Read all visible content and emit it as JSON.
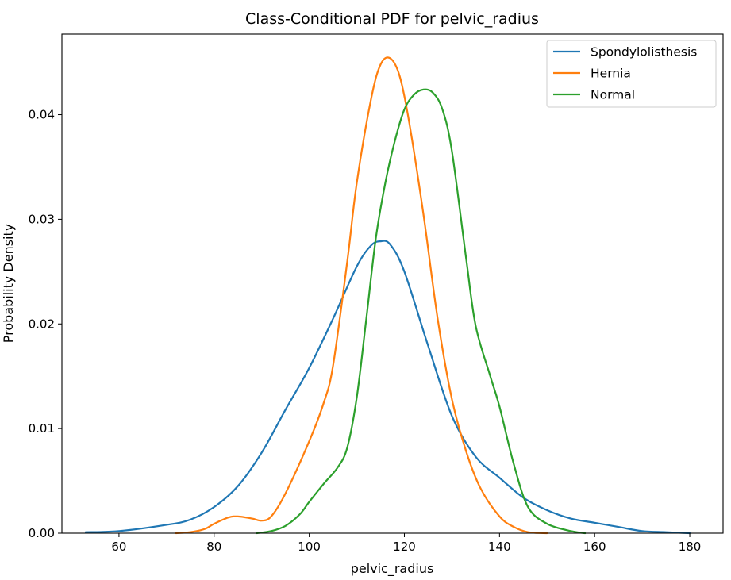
{
  "chart_data": {
    "type": "line",
    "title": "Class-Conditional PDF for pelvic_radius",
    "xlabel": "pelvic_radius",
    "ylabel": "Probability Density",
    "xlim": [
      48,
      187
    ],
    "ylim": [
      0,
      0.0477
    ],
    "xticks": [
      60,
      80,
      100,
      120,
      140,
      160,
      180
    ],
    "yticks": [
      0.0,
      0.01,
      0.02,
      0.03,
      0.04
    ],
    "ytick_labels": [
      "0.00",
      "0.01",
      "0.02",
      "0.03",
      "0.04"
    ],
    "grid": false,
    "legend_position": "top-right",
    "series": [
      {
        "name": "Spondylolisthesis",
        "color": "#1f77b4",
        "x": [
          53,
          60,
          70,
          75,
          80,
          85,
          90,
          95,
          100,
          105,
          110,
          113,
          115,
          117,
          120,
          125,
          130,
          135,
          140,
          145,
          150,
          155,
          160,
          165,
          170,
          175,
          180
        ],
        "y": [
          0.0001,
          0.0002,
          0.0008,
          0.0013,
          0.0025,
          0.0045,
          0.0077,
          0.0118,
          0.0158,
          0.0205,
          0.0255,
          0.0275,
          0.0279,
          0.0276,
          0.025,
          0.0179,
          0.0112,
          0.0073,
          0.0053,
          0.0034,
          0.0022,
          0.0014,
          0.001,
          0.0006,
          0.0002,
          0.0001,
          0.0
        ]
      },
      {
        "name": "Hernia",
        "color": "#ff7f0e",
        "x": [
          72,
          75,
          78,
          80,
          83,
          85,
          88,
          90,
          92,
          95,
          100,
          103,
          105,
          108,
          110,
          113,
          115,
          117,
          119,
          121,
          124,
          127,
          130,
          133,
          136,
          140,
          143,
          146,
          150
        ],
        "y": [
          0.0,
          0.0001,
          0.0004,
          0.0009,
          0.0015,
          0.0016,
          0.0014,
          0.0012,
          0.0016,
          0.0038,
          0.0088,
          0.0124,
          0.016,
          0.026,
          0.0335,
          0.0415,
          0.0448,
          0.0454,
          0.0437,
          0.0393,
          0.0305,
          0.0205,
          0.0128,
          0.0078,
          0.0043,
          0.0016,
          0.0006,
          0.0001,
          0.0
        ]
      },
      {
        "name": "Normal",
        "color": "#2ca02c",
        "x": [
          89,
          92,
          95,
          98,
          100,
          103,
          106,
          108,
          110,
          112,
          114,
          116,
          118,
          120,
          122,
          124,
          126,
          128,
          130,
          133,
          135,
          138,
          140,
          143,
          146,
          150,
          155,
          158
        ],
        "y": [
          0.0,
          0.0002,
          0.0007,
          0.0018,
          0.003,
          0.0047,
          0.0063,
          0.0082,
          0.013,
          0.0205,
          0.0282,
          0.0335,
          0.0375,
          0.0405,
          0.0419,
          0.0424,
          0.0421,
          0.0405,
          0.0365,
          0.0262,
          0.0198,
          0.0151,
          0.0121,
          0.0066,
          0.0025,
          0.0009,
          0.0002,
          0.0
        ]
      }
    ]
  }
}
